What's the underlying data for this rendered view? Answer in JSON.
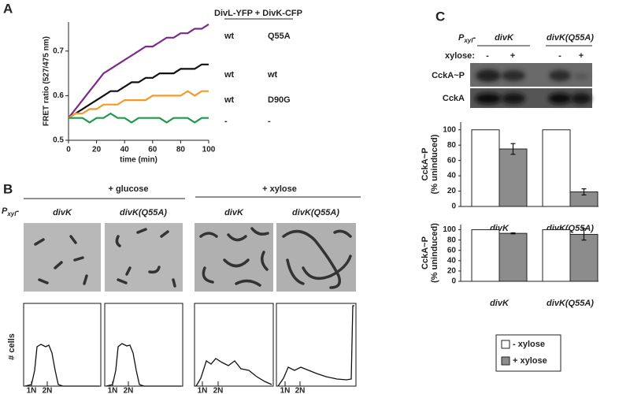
{
  "figure": {
    "panels": [
      "A",
      "B",
      "C"
    ],
    "line_legend_header": "DivL-YFP + DivK-CFP",
    "panel_b": {
      "conditions": [
        "+ glucose",
        "+ xylose"
      ],
      "promoter": {
        "main": "P",
        "sub": "xyl",
        "suffix": "-"
      },
      "strains": [
        "divK",
        "divK(Q55A)",
        "divK",
        "divK(Q55A)"
      ],
      "hist_ylabel": "# cells",
      "ploidy": [
        "1N",
        "2N"
      ]
    },
    "panel_c_blot": {
      "promoter": {
        "main": "P",
        "sub": "xyl",
        "suffix": "-"
      },
      "strains": [
        "divK",
        "divK(Q55A)"
      ],
      "xylose_label": "xylose:",
      "lanes": [
        "-",
        "+",
        "-",
        "+"
      ],
      "rows": [
        "CckA~P",
        "CckA"
      ]
    }
  },
  "chart_data": [
    {
      "type": "line",
      "xlabel": "time (min)",
      "ylabel": "FRET ratio (527/475 nm)",
      "x": [
        0,
        5,
        10,
        15,
        20,
        25,
        30,
        35,
        40,
        45,
        50,
        55,
        60,
        65,
        70,
        75,
        80,
        85,
        90,
        95,
        100
      ],
      "xlim": [
        0,
        100
      ],
      "xticks": [
        0,
        20,
        40,
        60,
        80,
        100
      ],
      "ylim": [
        0.5,
        0.765
      ],
      "yticks": [
        0.5,
        0.6,
        0.7
      ],
      "series": [
        {
          "name": "wt",
          "partner": "Q55A",
          "color": "#7b2a8c",
          "values": [
            0.55,
            0.57,
            0.59,
            0.61,
            0.63,
            0.65,
            0.66,
            0.67,
            0.68,
            0.69,
            0.7,
            0.71,
            0.71,
            0.72,
            0.73,
            0.73,
            0.74,
            0.74,
            0.75,
            0.75,
            0.76
          ]
        },
        {
          "name": "wt",
          "partner": "wt",
          "color": "#111111",
          "values": [
            0.55,
            0.56,
            0.57,
            0.58,
            0.59,
            0.6,
            0.61,
            0.61,
            0.62,
            0.63,
            0.63,
            0.64,
            0.64,
            0.65,
            0.65,
            0.65,
            0.66,
            0.66,
            0.66,
            0.67,
            0.67
          ]
        },
        {
          "name": "wt",
          "partner": "D90G",
          "color": "#f39a2b",
          "values": [
            0.55,
            0.56,
            0.56,
            0.57,
            0.57,
            0.58,
            0.58,
            0.58,
            0.59,
            0.59,
            0.59,
            0.59,
            0.6,
            0.6,
            0.6,
            0.6,
            0.6,
            0.61,
            0.6,
            0.61,
            0.61
          ]
        },
        {
          "name": "-",
          "partner": "-",
          "color": "#1e9a4a",
          "values": [
            0.55,
            0.55,
            0.55,
            0.54,
            0.55,
            0.55,
            0.56,
            0.55,
            0.55,
            0.54,
            0.55,
            0.55,
            0.55,
            0.55,
            0.54,
            0.55,
            0.55,
            0.55,
            0.54,
            0.55,
            0.55
          ]
        }
      ]
    },
    {
      "type": "bar",
      "ylabel": [
        "CckA~P",
        "(% uninduced)"
      ],
      "categories": [
        "divK",
        "divK(Q55A)"
      ],
      "ylim": [
        0,
        110
      ],
      "yticks": [
        0,
        20,
        40,
        60,
        80,
        100
      ],
      "series": [
        {
          "name": "- xylose",
          "color": "#ffffff",
          "values": [
            100,
            100
          ]
        },
        {
          "name": "+ xylose",
          "color": "#8c8c8c",
          "values": [
            75,
            19
          ],
          "errors": [
            7,
            4
          ]
        }
      ]
    },
    {
      "type": "bar",
      "ylabel": [
        "CckA~P",
        "(% uninduced)"
      ],
      "categories": [
        "divK",
        "divK(Q55A)"
      ],
      "ylim": [
        0,
        110
      ],
      "yticks": [
        0,
        20,
        40,
        60,
        80,
        100
      ],
      "series": [
        {
          "name": "- xylose",
          "color": "#ffffff",
          "values": [
            100,
            100
          ]
        },
        {
          "name": "+ xylose",
          "color": "#8c8c8c",
          "values": [
            93,
            91
          ],
          "errors": [
            1,
            11
          ]
        }
      ]
    }
  ]
}
